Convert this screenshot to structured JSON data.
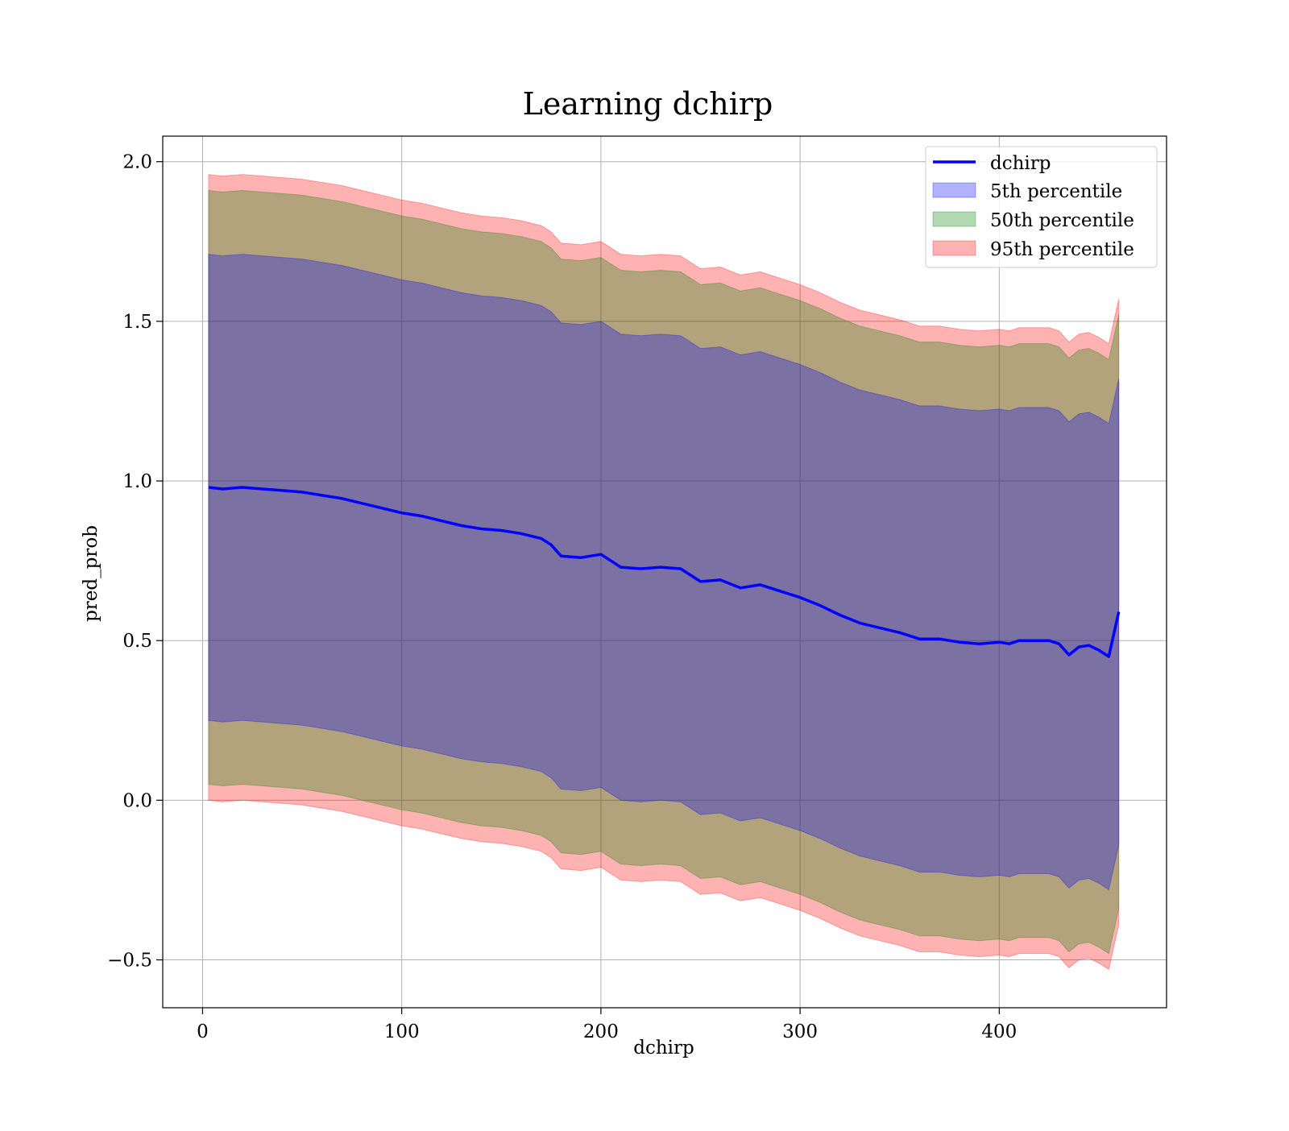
{
  "chart_data": {
    "type": "area",
    "title": "Learning dchirp",
    "xlabel": "dchirp",
    "ylabel": "pred_prob",
    "xlim": [
      -20,
      484
    ],
    "ylim": [
      -0.65,
      2.08
    ],
    "x_ticks": [
      0,
      100,
      200,
      300,
      400
    ],
    "y_ticks": [
      -0.5,
      0.0,
      0.5,
      1.0,
      1.5,
      2.0
    ],
    "x_tick_labels": [
      "0",
      "100",
      "200",
      "300",
      "400"
    ],
    "y_tick_labels": [
      "−0.5",
      "0.0",
      "0.5",
      "1.0",
      "1.5",
      "2.0"
    ],
    "grid": true,
    "legend_position": "top-right",
    "x": [
      3,
      10,
      20,
      30,
      40,
      50,
      60,
      70,
      80,
      90,
      100,
      110,
      120,
      130,
      140,
      150,
      160,
      170,
      175,
      180,
      190,
      200,
      210,
      220,
      230,
      240,
      250,
      260,
      270,
      280,
      290,
      300,
      310,
      320,
      330,
      340,
      350,
      360,
      370,
      380,
      390,
      400,
      405,
      410,
      415,
      420,
      425,
      430,
      435,
      440,
      445,
      450,
      455,
      460
    ],
    "series": [
      {
        "name": "dchirp",
        "kind": "line",
        "color": "#0000ff",
        "values": [
          0.98,
          0.975,
          0.98,
          0.975,
          0.97,
          0.965,
          0.955,
          0.945,
          0.93,
          0.915,
          0.9,
          0.89,
          0.875,
          0.86,
          0.85,
          0.845,
          0.835,
          0.82,
          0.8,
          0.765,
          0.76,
          0.77,
          0.73,
          0.725,
          0.73,
          0.725,
          0.685,
          0.69,
          0.665,
          0.675,
          0.655,
          0.635,
          0.61,
          0.58,
          0.555,
          0.54,
          0.525,
          0.505,
          0.505,
          0.495,
          0.49,
          0.495,
          0.49,
          0.5,
          0.5,
          0.5,
          0.5,
          0.49,
          0.455,
          0.48,
          0.485,
          0.47,
          0.45,
          0.59
        ]
      },
      {
        "name": "5th percentile",
        "kind": "band",
        "color": "#0000ff",
        "lower": [
          0.25,
          0.245,
          0.25,
          0.245,
          0.24,
          0.235,
          0.225,
          0.215,
          0.2,
          0.185,
          0.17,
          0.16,
          0.145,
          0.13,
          0.12,
          0.115,
          0.105,
          0.09,
          0.07,
          0.035,
          0.03,
          0.04,
          0.0,
          -0.005,
          0.0,
          -0.005,
          -0.045,
          -0.04,
          -0.065,
          -0.055,
          -0.075,
          -0.095,
          -0.12,
          -0.15,
          -0.175,
          -0.19,
          -0.205,
          -0.225,
          -0.225,
          -0.235,
          -0.24,
          -0.235,
          -0.24,
          -0.23,
          -0.23,
          -0.23,
          -0.23,
          -0.24,
          -0.275,
          -0.25,
          -0.245,
          -0.26,
          -0.28,
          -0.14
        ],
        "upper": [
          1.71,
          1.705,
          1.71,
          1.705,
          1.7,
          1.695,
          1.685,
          1.675,
          1.66,
          1.645,
          1.63,
          1.62,
          1.605,
          1.59,
          1.58,
          1.575,
          1.565,
          1.55,
          1.53,
          1.495,
          1.49,
          1.5,
          1.46,
          1.455,
          1.46,
          1.455,
          1.415,
          1.42,
          1.395,
          1.405,
          1.385,
          1.365,
          1.34,
          1.31,
          1.285,
          1.27,
          1.255,
          1.235,
          1.235,
          1.225,
          1.22,
          1.225,
          1.22,
          1.23,
          1.23,
          1.23,
          1.23,
          1.22,
          1.185,
          1.21,
          1.215,
          1.2,
          1.18,
          1.32
        ]
      },
      {
        "name": "50th percentile",
        "kind": "band",
        "color": "#008000",
        "lower": [
          0.05,
          0.045,
          0.05,
          0.045,
          0.04,
          0.035,
          0.025,
          0.015,
          0.0,
          -0.015,
          -0.03,
          -0.04,
          -0.055,
          -0.07,
          -0.08,
          -0.085,
          -0.095,
          -0.11,
          -0.13,
          -0.165,
          -0.17,
          -0.16,
          -0.2,
          -0.205,
          -0.2,
          -0.205,
          -0.245,
          -0.24,
          -0.265,
          -0.255,
          -0.275,
          -0.295,
          -0.32,
          -0.35,
          -0.375,
          -0.39,
          -0.405,
          -0.425,
          -0.425,
          -0.435,
          -0.44,
          -0.435,
          -0.44,
          -0.43,
          -0.43,
          -0.43,
          -0.43,
          -0.44,
          -0.475,
          -0.45,
          -0.445,
          -0.46,
          -0.48,
          -0.34
        ],
        "upper": [
          1.91,
          1.905,
          1.91,
          1.905,
          1.9,
          1.895,
          1.885,
          1.875,
          1.86,
          1.845,
          1.83,
          1.82,
          1.805,
          1.79,
          1.78,
          1.775,
          1.765,
          1.75,
          1.73,
          1.695,
          1.69,
          1.7,
          1.66,
          1.655,
          1.66,
          1.655,
          1.615,
          1.62,
          1.595,
          1.605,
          1.585,
          1.565,
          1.54,
          1.51,
          1.485,
          1.47,
          1.455,
          1.435,
          1.435,
          1.425,
          1.42,
          1.425,
          1.42,
          1.43,
          1.43,
          1.43,
          1.43,
          1.42,
          1.385,
          1.41,
          1.415,
          1.4,
          1.38,
          1.52
        ]
      },
      {
        "name": "95th percentile",
        "kind": "band",
        "color": "#ff0000",
        "lower": [
          0.0,
          -0.005,
          0.0,
          -0.005,
          -0.01,
          -0.015,
          -0.025,
          -0.035,
          -0.05,
          -0.065,
          -0.08,
          -0.09,
          -0.105,
          -0.12,
          -0.13,
          -0.135,
          -0.145,
          -0.16,
          -0.18,
          -0.215,
          -0.22,
          -0.21,
          -0.25,
          -0.255,
          -0.25,
          -0.255,
          -0.295,
          -0.29,
          -0.315,
          -0.305,
          -0.325,
          -0.345,
          -0.37,
          -0.4,
          -0.425,
          -0.44,
          -0.455,
          -0.475,
          -0.475,
          -0.485,
          -0.49,
          -0.485,
          -0.49,
          -0.48,
          -0.48,
          -0.48,
          -0.48,
          -0.49,
          -0.525,
          -0.5,
          -0.495,
          -0.51,
          -0.53,
          -0.39
        ],
        "upper": [
          1.96,
          1.955,
          1.96,
          1.955,
          1.95,
          1.945,
          1.935,
          1.925,
          1.91,
          1.895,
          1.88,
          1.87,
          1.855,
          1.84,
          1.83,
          1.825,
          1.815,
          1.8,
          1.78,
          1.745,
          1.74,
          1.75,
          1.71,
          1.705,
          1.71,
          1.705,
          1.665,
          1.67,
          1.645,
          1.655,
          1.635,
          1.615,
          1.59,
          1.56,
          1.535,
          1.52,
          1.505,
          1.485,
          1.485,
          1.475,
          1.47,
          1.475,
          1.47,
          1.48,
          1.48,
          1.48,
          1.48,
          1.47,
          1.435,
          1.46,
          1.465,
          1.45,
          1.43,
          1.57
        ]
      }
    ]
  }
}
